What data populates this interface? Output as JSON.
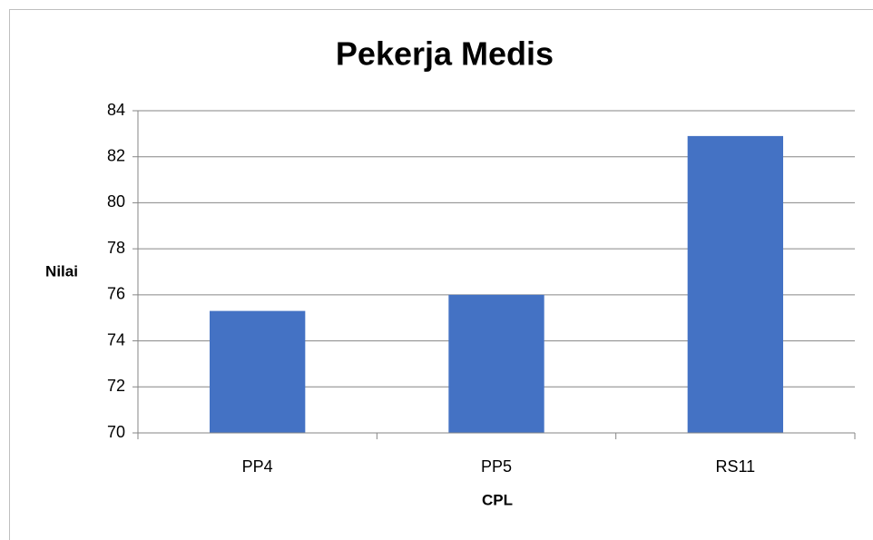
{
  "chart_data": {
    "type": "bar",
    "title": "Pekerja Medis",
    "x_label": "CPL",
    "y_label": "Nilai",
    "categories": [
      "PP4",
      "PP5",
      "RS11"
    ],
    "values": [
      75.3,
      76,
      82.9
    ],
    "color": "#4472c4",
    "ylim": [
      70,
      84
    ],
    "yticks": [
      70,
      72,
      74,
      76,
      78,
      80,
      82,
      84
    ],
    "grid": true
  }
}
